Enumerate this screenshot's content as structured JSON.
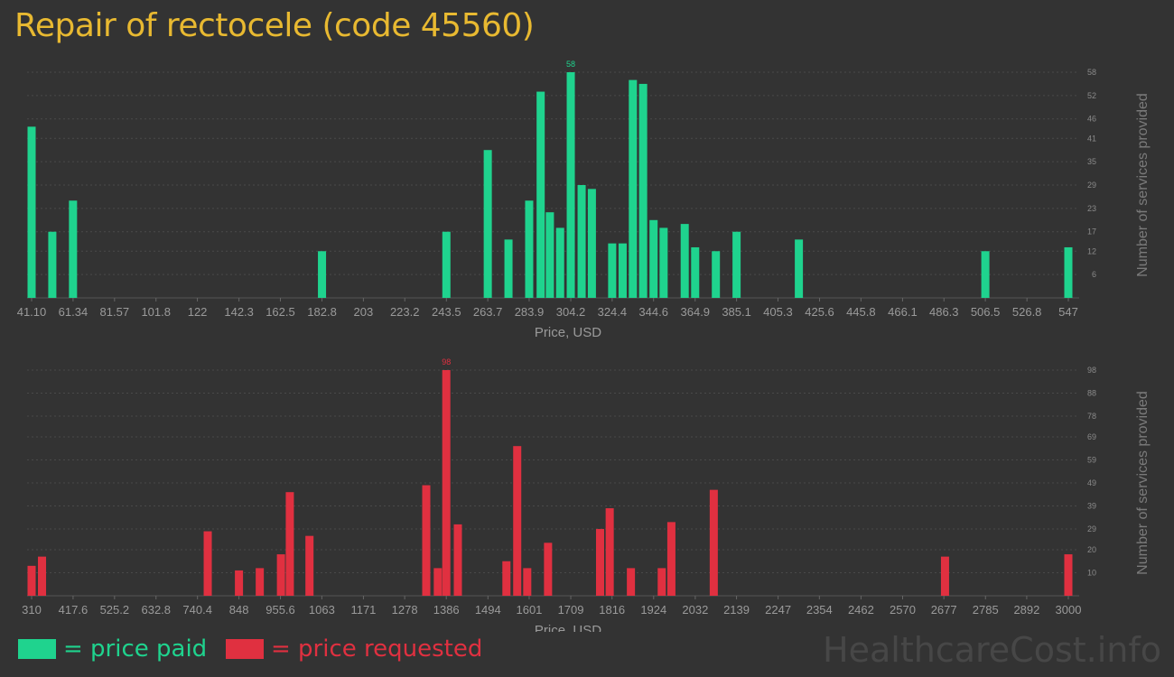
{
  "title": "Repair of rectocele (code 45560)",
  "colors": {
    "paid": "#1fd38e",
    "requested": "#e03040",
    "title": "#e8b931"
  },
  "legend": {
    "paid": "= price paid",
    "requested": "= price requested"
  },
  "watermark": "HealthcareCost.info",
  "chart_data": [
    {
      "type": "bar",
      "series_color": "paid",
      "xlabel": "Price, USD",
      "ylabel": "Number of services provided",
      "x_ticks": [
        "41.10",
        "61.34",
        "81.57",
        "101.8",
        "122",
        "142.3",
        "162.5",
        "182.8",
        "203",
        "223.2",
        "243.5",
        "263.7",
        "283.9",
        "304.2",
        "324.4",
        "344.6",
        "364.9",
        "385.1",
        "405.3",
        "425.6",
        "445.8",
        "466.1",
        "486.3",
        "506.5",
        "526.8",
        "547"
      ],
      "x_tick_values": [
        41.1,
        61.34,
        81.57,
        101.8,
        122,
        142.3,
        162.5,
        182.8,
        203,
        223.2,
        243.5,
        263.7,
        283.9,
        304.2,
        324.4,
        344.6,
        364.9,
        385.1,
        405.3,
        425.6,
        445.8,
        466.1,
        486.3,
        506.5,
        526.8,
        547
      ],
      "y_ticks": [
        6,
        12,
        17,
        23,
        29,
        35,
        41,
        46,
        52,
        58
      ],
      "ylim": [
        0,
        58
      ],
      "xlim": [
        41.1,
        547
      ],
      "max_label": "58",
      "grid": true,
      "points": [
        {
          "x": 41.1,
          "y": 44
        },
        {
          "x": 51.2,
          "y": 17
        },
        {
          "x": 61.3,
          "y": 25
        },
        {
          "x": 182.8,
          "y": 12
        },
        {
          "x": 243.5,
          "y": 17
        },
        {
          "x": 263.7,
          "y": 38
        },
        {
          "x": 273.8,
          "y": 15
        },
        {
          "x": 283.9,
          "y": 25
        },
        {
          "x": 289.5,
          "y": 53
        },
        {
          "x": 294.0,
          "y": 22
        },
        {
          "x": 299.0,
          "y": 18
        },
        {
          "x": 304.2,
          "y": 58
        },
        {
          "x": 309.5,
          "y": 29
        },
        {
          "x": 314.5,
          "y": 28
        },
        {
          "x": 324.4,
          "y": 14
        },
        {
          "x": 329.5,
          "y": 14
        },
        {
          "x": 334.5,
          "y": 56
        },
        {
          "x": 339.5,
          "y": 55
        },
        {
          "x": 344.6,
          "y": 20
        },
        {
          "x": 349.5,
          "y": 18
        },
        {
          "x": 359.8,
          "y": 19
        },
        {
          "x": 364.9,
          "y": 13
        },
        {
          "x": 375.0,
          "y": 12
        },
        {
          "x": 385.1,
          "y": 17
        },
        {
          "x": 415.5,
          "y": 15
        },
        {
          "x": 506.5,
          "y": 12
        },
        {
          "x": 547,
          "y": 13
        }
      ]
    },
    {
      "type": "bar",
      "series_color": "requested",
      "xlabel": "Price, USD",
      "ylabel": "Number of services provided",
      "x_ticks": [
        "310",
        "417.6",
        "525.2",
        "632.8",
        "740.4",
        "848",
        "955.6",
        "1063",
        "1171",
        "1278",
        "1386",
        "1494",
        "1601",
        "1709",
        "1816",
        "1924",
        "2032",
        "2139",
        "2247",
        "2354",
        "2462",
        "2570",
        "2677",
        "2785",
        "2892",
        "3000"
      ],
      "x_tick_values": [
        310,
        417.6,
        525.2,
        632.8,
        740.4,
        848,
        955.6,
        1063,
        1171,
        1278,
        1386,
        1494,
        1601,
        1709,
        1816,
        1924,
        2032,
        2139,
        2247,
        2354,
        2462,
        2570,
        2677,
        2785,
        2892,
        3000
      ],
      "y_ticks": [
        10,
        20,
        29,
        39,
        49,
        59,
        69,
        78,
        88,
        98
      ],
      "ylim": [
        0,
        98
      ],
      "xlim": [
        310,
        3000
      ],
      "max_label": "98",
      "grid": true,
      "points": [
        {
          "x": 310,
          "y": 13
        },
        {
          "x": 337,
          "y": 17
        },
        {
          "x": 767,
          "y": 28
        },
        {
          "x": 848,
          "y": 11
        },
        {
          "x": 902,
          "y": 12
        },
        {
          "x": 957,
          "y": 18
        },
        {
          "x": 980,
          "y": 45
        },
        {
          "x": 1031,
          "y": 26
        },
        {
          "x": 1334,
          "y": 48
        },
        {
          "x": 1364,
          "y": 12
        },
        {
          "x": 1386,
          "y": 98
        },
        {
          "x": 1416,
          "y": 31
        },
        {
          "x": 1542,
          "y": 15
        },
        {
          "x": 1570,
          "y": 65
        },
        {
          "x": 1596,
          "y": 12
        },
        {
          "x": 1650,
          "y": 23
        },
        {
          "x": 1785,
          "y": 29
        },
        {
          "x": 1810,
          "y": 38
        },
        {
          "x": 1865,
          "y": 12
        },
        {
          "x": 1945,
          "y": 12
        },
        {
          "x": 1970,
          "y": 32
        },
        {
          "x": 2080,
          "y": 46
        },
        {
          "x": 2680,
          "y": 17
        },
        {
          "x": 3000,
          "y": 18
        }
      ]
    }
  ]
}
